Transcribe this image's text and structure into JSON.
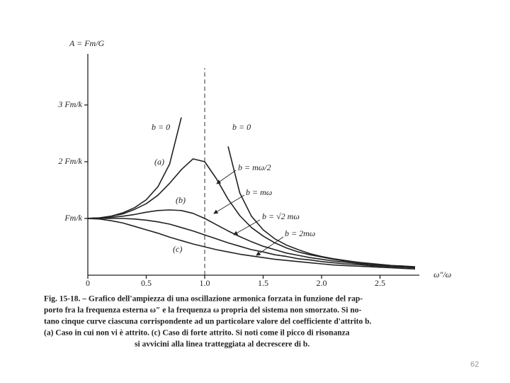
{
  "chart_data": {
    "type": "line",
    "y_label": "A = Fm/G",
    "x_label": "ω″/ω",
    "x": [
      0,
      0.1,
      0.2,
      0.3,
      0.4,
      0.5,
      0.6,
      0.7,
      0.8,
      0.9,
      1,
      1.1,
      1.2,
      1.3,
      1.4,
      1.5,
      1.6,
      1.7,
      1.8,
      1.9,
      2,
      2.1,
      2.2,
      2.3,
      2.4,
      2.5,
      2.6,
      2.7,
      2.8
    ],
    "series": [
      {
        "name": "b = 0",
        "color": "#222",
        "values": [
          1,
          1.01,
          1.04,
          1.1,
          1.19,
          1.33,
          1.56,
          1.96,
          2.78,
          null,
          null,
          null,
          2.27,
          1.45,
          1.04,
          0.8,
          0.64,
          0.53,
          0.45,
          0.38,
          0.33,
          0.29,
          0.26,
          0.23,
          0.21,
          0.19,
          0.17,
          0.16,
          0.15
        ]
      },
      {
        "name": "b = mω/2",
        "color": "#222",
        "values": [
          1,
          1.01,
          1.04,
          1.08,
          1.16,
          1.26,
          1.41,
          1.62,
          1.86,
          2.05,
          2,
          1.7,
          1.34,
          1.05,
          0.84,
          0.69,
          0.57,
          0.48,
          0.41,
          0.36,
          0.32,
          0.28,
          0.25,
          0.23,
          0.2,
          0.19,
          0.17,
          0.16,
          0.14
        ]
      },
      {
        "name": "b = mω",
        "color": "#222",
        "values": [
          1,
          1.01,
          1.02,
          1.04,
          1.07,
          1.11,
          1.14,
          1.15,
          1.14,
          1.09,
          1,
          0.89,
          0.78,
          0.68,
          0.59,
          0.51,
          0.45,
          0.39,
          0.35,
          0.31,
          0.28,
          0.25,
          0.23,
          0.21,
          0.19,
          0.17,
          0.16,
          0.15,
          0.14
        ]
      },
      {
        "name": "b = √2 mω",
        "color": "#222",
        "values": [
          1,
          1,
          1,
          1,
          0.99,
          0.97,
          0.94,
          0.9,
          0.84,
          0.78,
          0.71,
          0.64,
          0.57,
          0.51,
          0.45,
          0.41,
          0.36,
          0.33,
          0.29,
          0.27,
          0.24,
          0.22,
          0.2,
          0.19,
          0.17,
          0.16,
          0.15,
          0.14,
          0.13
        ]
      },
      {
        "name": "b = 2mω",
        "color": "#222",
        "values": [
          1,
          0.99,
          0.96,
          0.92,
          0.86,
          0.8,
          0.74,
          0.67,
          0.61,
          0.55,
          0.5,
          0.45,
          0.41,
          0.37,
          0.34,
          0.31,
          0.28,
          0.26,
          0.24,
          0.22,
          0.2,
          0.18,
          0.17,
          0.16,
          0.15,
          0.14,
          0.13,
          0.12,
          0.11
        ]
      }
    ],
    "annotations": [
      "(a)",
      "(b)",
      "(c)"
    ],
    "xlim": [
      0,
      2.8
    ],
    "ylim": [
      0,
      3.9
    ],
    "xticks": [
      0,
      0.5,
      {
        "value": 1,
        "label": "1.0"
      },
      1.5,
      {
        "value": 2,
        "label": "2.0"
      },
      2.5
    ],
    "yticks": [
      {
        "value": 1,
        "label": "Fm/k"
      },
      {
        "value": 2,
        "label": "2 Fm/k"
      },
      {
        "value": 3,
        "label": "3 Fm/k"
      }
    ],
    "vline": 1,
    "grid": false
  },
  "caption": [
    "Fig. 15-18. – Grafico dell'ampiezza di una oscillazione armonica forzata in funzione del rap-",
    "porto fra la frequenza esterna ω″ e la frequenza ω propria del sistema non smorzato. Si no-",
    "tano cinque curve ciascuna corrispondente ad un particolare valore del coefficiente d'attrito b.",
    "(a) Caso in cui non vi è attrito. (c) Caso di forte attrito. Si noti come il picco di risonanza",
    "si avvicini alla linea tratteggiata al decrescere di b."
  ],
  "page_number": "62"
}
